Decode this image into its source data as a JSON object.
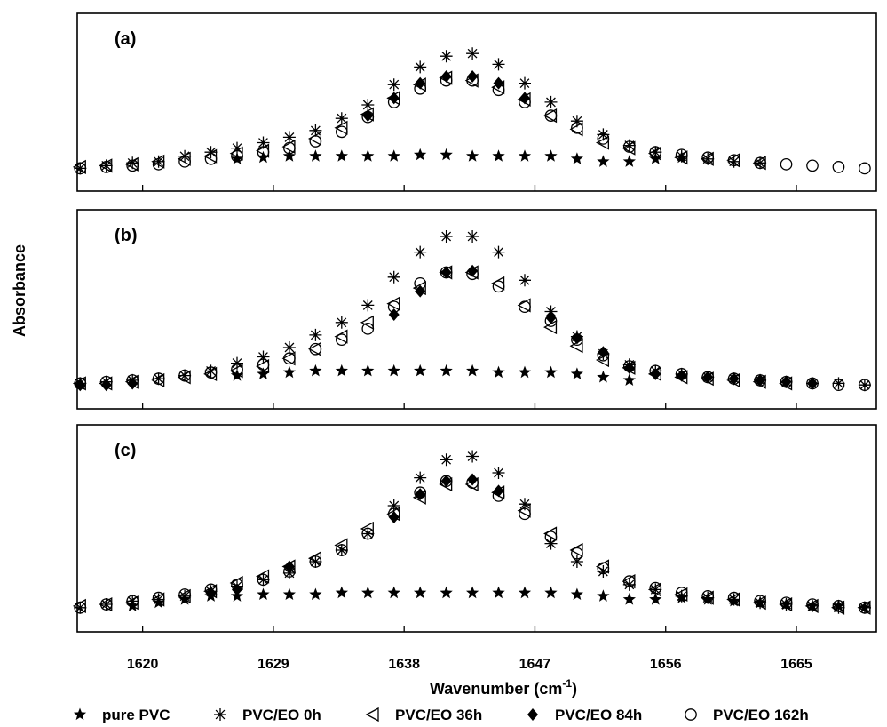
{
  "chart_data": {
    "type": "scatter",
    "xlabel": "Wavenumber (cm",
    "xlabel_superscript": "-1",
    "xlabel_close": ")",
    "ylabel": "Absorbance",
    "xlim": [
      1615.5,
      1670.5
    ],
    "x_ticks": [
      1620,
      1629,
      1638,
      1647,
      1656,
      1665
    ],
    "x_tick_labels": [
      "1620",
      "1629",
      "1638",
      "1647",
      "1656",
      "1665"
    ],
    "x": [
      1615.7,
      1617.5,
      1619.3,
      1621.1,
      1622.9,
      1624.7,
      1626.5,
      1628.3,
      1630.1,
      1631.9,
      1633.7,
      1635.5,
      1637.3,
      1639.1,
      1640.9,
      1642.7,
      1644.5,
      1646.3,
      1648.1,
      1649.9,
      1651.7,
      1653.5,
      1655.3,
      1657.1,
      1658.9,
      1660.7,
      1662.5,
      1664.3,
      1666.1,
      1667.9,
      1669.7
    ],
    "ylim": [
      0,
      1
    ],
    "legend": {
      "position": "bottom",
      "entries": [
        {
          "label": "pure PVC",
          "marker": "star-filled"
        },
        {
          "label": "PVC/EO 0h",
          "marker": "asterisk"
        },
        {
          "label": "PVC/EO 36h",
          "marker": "left-triangle-open"
        },
        {
          "label": "PVC/EO 84h",
          "marker": "diamond-filled"
        },
        {
          "label": "PVC/EO 162h",
          "marker": "circle-open"
        }
      ]
    },
    "panels": [
      {
        "label": "(a)",
        "series": [
          {
            "name": "pure PVC",
            "values": [
              null,
              null,
              null,
              null,
              null,
              null,
              0.12,
              0.13,
              0.14,
              0.14,
              0.14,
              0.14,
              0.14,
              0.15,
              0.15,
              0.14,
              0.14,
              0.14,
              0.14,
              0.12,
              0.1,
              0.1,
              0.12,
              0.13,
              null,
              null,
              null,
              null,
              null,
              null,
              null
            ]
          },
          {
            "name": "PVC/EO 0h",
            "values": [
              0.05,
              0.07,
              0.09,
              0.1,
              0.14,
              0.17,
              0.2,
              0.24,
              0.28,
              0.33,
              0.42,
              0.52,
              0.67,
              0.8,
              0.88,
              0.9,
              0.82,
              0.68,
              0.54,
              0.4,
              0.3,
              0.22,
              0.17,
              0.14,
              0.12,
              0.1,
              0.09,
              null,
              null,
              null,
              null
            ]
          },
          {
            "name": "PVC/EO 36h",
            "values": [
              0.06,
              0.07,
              0.08,
              0.1,
              0.12,
              0.14,
              0.16,
              0.18,
              0.21,
              0.27,
              0.35,
              0.45,
              0.57,
              0.67,
              0.72,
              0.7,
              0.65,
              0.56,
              0.44,
              0.34,
              0.24,
              0.2,
              0.16,
              0.13,
              0.12,
              0.11,
              0.09,
              null,
              null,
              null,
              null
            ]
          },
          {
            "name": "PVC/EO 84h",
            "values": [
              null,
              null,
              null,
              null,
              null,
              null,
              null,
              null,
              null,
              null,
              null,
              0.44,
              0.57,
              0.68,
              0.73,
              0.73,
              0.68,
              0.57,
              null,
              null,
              null,
              null,
              null,
              null,
              null,
              null,
              null,
              null,
              null,
              null,
              null
            ]
          },
          {
            "name": "PVC/EO 162h",
            "values": [
              0.05,
              0.06,
              0.07,
              0.08,
              0.1,
              0.12,
              0.14,
              0.17,
              0.2,
              0.25,
              0.32,
              0.43,
              0.54,
              0.64,
              0.7,
              0.7,
              0.63,
              0.54,
              0.44,
              0.35,
              0.27,
              0.21,
              0.17,
              0.15,
              0.13,
              0.11,
              0.09,
              0.08,
              0.07,
              0.06,
              0.05
            ]
          }
        ]
      },
      {
        "label": "(b)",
        "series": [
          {
            "name": "pure PVC",
            "values": [
              null,
              null,
              null,
              null,
              null,
              null,
              0.11,
              0.12,
              0.13,
              0.14,
              0.14,
              0.14,
              0.14,
              0.14,
              0.14,
              0.14,
              0.13,
              0.13,
              0.13,
              0.12,
              0.1,
              0.08,
              null,
              null,
              null,
              null,
              null,
              null,
              null,
              null,
              null
            ]
          },
          {
            "name": "PVC/EO 0h",
            "values": [
              0.06,
              0.07,
              0.08,
              0.09,
              0.11,
              0.14,
              0.19,
              0.23,
              0.29,
              0.37,
              0.45,
              0.56,
              0.74,
              0.9,
              1.0,
              1.0,
              0.9,
              0.72,
              0.52,
              0.36,
              0.25,
              0.18,
              0.14,
              0.12,
              0.1,
              0.09,
              0.08,
              0.07,
              0.06,
              0.06,
              0.05
            ]
          },
          {
            "name": "PVC/EO 36h",
            "values": [
              0.06,
              0.06,
              0.07,
              0.08,
              0.1,
              0.12,
              0.14,
              0.17,
              0.22,
              0.28,
              0.36,
              0.45,
              0.57,
              0.67,
              0.77,
              0.77,
              0.7,
              0.56,
              0.42,
              0.3,
              0.21,
              0.16,
              0.12,
              0.1,
              0.09,
              0.08,
              0.07,
              0.06,
              null,
              null,
              null
            ]
          },
          {
            "name": "PVC/EO 84h",
            "values": [
              0.05,
              0.05,
              0.06,
              null,
              null,
              null,
              null,
              null,
              null,
              null,
              null,
              null,
              0.5,
              0.65,
              0.77,
              0.78,
              null,
              null,
              0.48,
              0.35,
              0.26,
              0.16,
              0.12,
              0.11,
              0.1,
              0.09,
              0.08,
              0.07,
              0.06,
              null,
              null
            ]
          },
          {
            "name": "PVC/EO 162h",
            "values": [
              0.06,
              0.07,
              0.08,
              0.09,
              0.11,
              0.13,
              0.15,
              0.18,
              0.22,
              0.28,
              0.34,
              0.41,
              0.55,
              0.7,
              0.77,
              0.76,
              0.68,
              0.55,
              0.46,
              0.34,
              0.24,
              0.17,
              0.14,
              0.12,
              0.1,
              0.09,
              0.08,
              0.07,
              0.06,
              0.05,
              0.05
            ]
          }
        ]
      },
      {
        "label": "(c)",
        "series": [
          {
            "name": "pure PVC",
            "values": [
              null,
              null,
              0.06,
              0.08,
              0.1,
              0.12,
              0.12,
              0.13,
              0.13,
              0.13,
              0.14,
              0.14,
              0.14,
              0.14,
              0.14,
              0.14,
              0.14,
              0.14,
              0.14,
              0.13,
              0.12,
              0.1,
              0.1,
              0.11,
              0.1,
              0.09,
              0.08,
              0.07,
              0.06,
              0.06,
              0.05
            ]
          },
          {
            "name": "PVC/EO 0h",
            "values": [
              0.05,
              0.07,
              0.09,
              0.1,
              0.12,
              0.15,
              0.18,
              0.22,
              0.26,
              0.33,
              0.4,
              0.5,
              0.67,
              0.84,
              0.95,
              0.97,
              0.87,
              0.68,
              0.44,
              0.33,
              0.27,
              0.19,
              0.16,
              0.12,
              0.11,
              0.1,
              0.08,
              0.07,
              0.06,
              0.05,
              0.05
            ]
          },
          {
            "name": "PVC/EO 36h",
            "values": [
              0.06,
              0.07,
              0.08,
              0.1,
              0.12,
              0.15,
              0.2,
              0.24,
              0.3,
              0.35,
              0.43,
              0.53,
              0.62,
              0.72,
              0.8,
              0.8,
              0.75,
              0.64,
              0.5,
              0.4,
              0.3,
              0.21,
              0.16,
              0.13,
              0.11,
              0.1,
              0.08,
              0.07,
              0.06,
              0.05,
              0.05
            ]
          },
          {
            "name": "PVC/EO 84h",
            "values": [
              null,
              null,
              null,
              null,
              null,
              0.14,
              0.16,
              null,
              0.3,
              null,
              null,
              null,
              0.6,
              0.74,
              0.82,
              0.83,
              0.76,
              null,
              null,
              null,
              null,
              null,
              null,
              null,
              null,
              null,
              null,
              null,
              null,
              null,
              null
            ]
          },
          {
            "name": "PVC/EO 162h",
            "values": [
              0.05,
              0.07,
              0.09,
              0.11,
              0.13,
              0.16,
              0.19,
              0.22,
              0.27,
              0.33,
              0.4,
              0.5,
              0.62,
              0.75,
              0.82,
              0.81,
              0.73,
              0.62,
              0.48,
              0.38,
              0.29,
              0.21,
              0.17,
              0.14,
              0.12,
              0.11,
              0.09,
              0.08,
              0.07,
              0.06,
              0.05
            ]
          }
        ]
      }
    ]
  }
}
